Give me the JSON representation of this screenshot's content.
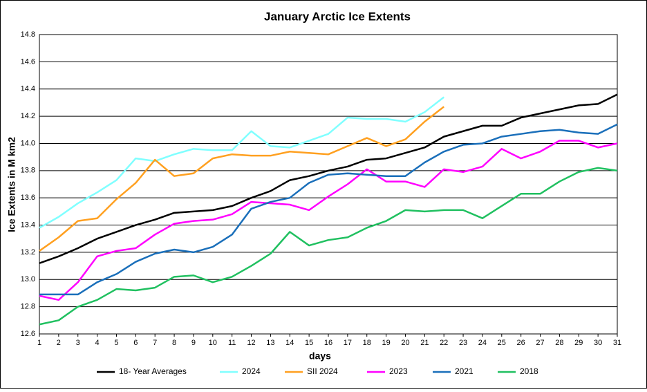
{
  "chart_data": {
    "type": "line",
    "title": "January Arctic Ice Extents",
    "ylabel": "Ice Extents in M km2",
    "xlabel": "days",
    "x": [
      1,
      2,
      3,
      4,
      5,
      6,
      7,
      8,
      9,
      10,
      11,
      12,
      13,
      14,
      15,
      16,
      17,
      18,
      19,
      20,
      21,
      22,
      23,
      24,
      25,
      26,
      27,
      28,
      29,
      30,
      31
    ],
    "xlim": [
      1,
      31
    ],
    "xticks": [
      1,
      2,
      3,
      4,
      5,
      6,
      7,
      8,
      9,
      10,
      11,
      12,
      13,
      14,
      15,
      16,
      17,
      18,
      19,
      20,
      21,
      22,
      23,
      24,
      25,
      26,
      27,
      28,
      29,
      30,
      31
    ],
    "ylim": [
      12.6,
      14.8
    ],
    "yticks": [
      12.6,
      12.8,
      {
        "value": 13,
        "label": "13.0"
      },
      13.2,
      13.4,
      13.6,
      13.8,
      {
        "value": 14,
        "label": "14.0"
      },
      14.2,
      14.4,
      14.6,
      14.8
    ],
    "grid": true,
    "legend": "bottom",
    "series": [
      {
        "name": "18- Year Averages",
        "color": "#000000",
        "values": [
          13.12,
          13.17,
          13.23,
          13.3,
          13.35,
          13.4,
          13.44,
          13.49,
          13.5,
          13.51,
          13.54,
          13.6,
          13.65,
          13.73,
          13.76,
          13.8,
          13.83,
          13.88,
          13.89,
          13.93,
          13.97,
          14.05,
          14.09,
          14.13,
          14.13,
          14.19,
          14.22,
          14.25,
          14.28,
          14.29,
          14.36
        ]
      },
      {
        "name": "2024",
        "color": "#80ffff",
        "values": [
          13.38,
          13.46,
          13.56,
          13.64,
          13.73,
          13.89,
          13.87,
          13.92,
          13.96,
          13.95,
          13.95,
          14.09,
          13.98,
          13.97,
          14.02,
          14.07,
          14.19,
          14.18,
          14.18,
          14.16,
          14.23,
          14.34,
          null,
          null,
          null,
          null,
          null,
          null,
          null,
          null,
          null
        ]
      },
      {
        "name": "SII 2024",
        "color": "#ffa020",
        "values": [
          13.21,
          13.31,
          13.43,
          13.45,
          13.59,
          13.71,
          13.88,
          13.76,
          13.78,
          13.89,
          13.92,
          13.91,
          13.91,
          13.94,
          13.93,
          13.92,
          13.98,
          14.04,
          13.98,
          14.03,
          14.16,
          14.27,
          null,
          null,
          null,
          null,
          null,
          null,
          null,
          null,
          null
        ]
      },
      {
        "name": "2023",
        "color": "#ff00ff",
        "values": [
          12.88,
          12.85,
          12.98,
          13.17,
          13.21,
          13.23,
          13.33,
          13.41,
          13.43,
          13.44,
          13.48,
          13.57,
          13.56,
          13.55,
          13.51,
          13.61,
          13.7,
          13.81,
          13.72,
          13.72,
          13.68,
          13.81,
          13.79,
          13.83,
          13.96,
          13.89,
          13.94,
          14.02,
          14.02,
          13.97,
          14.0
        ]
      },
      {
        "name": "2021",
        "color": "#1a6fba",
        "values": [
          12.89,
          12.89,
          12.89,
          12.98,
          13.04,
          13.13,
          13.19,
          13.22,
          13.2,
          13.24,
          13.33,
          13.52,
          13.57,
          13.6,
          13.71,
          13.77,
          13.78,
          13.77,
          13.76,
          13.76,
          13.86,
          13.94,
          13.99,
          14.0,
          14.05,
          14.07,
          14.09,
          14.1,
          14.08,
          14.07,
          14.14
        ]
      },
      {
        "name": "2018",
        "color": "#20c060",
        "values": [
          12.67,
          12.7,
          12.8,
          12.85,
          12.93,
          12.92,
          12.94,
          13.02,
          13.03,
          12.98,
          13.02,
          13.1,
          13.19,
          13.35,
          13.25,
          13.29,
          13.31,
          13.38,
          13.43,
          13.51,
          13.5,
          13.51,
          13.51,
          13.45,
          13.54,
          13.63,
          13.63,
          13.72,
          13.79,
          13.82,
          13.8
        ]
      }
    ]
  }
}
